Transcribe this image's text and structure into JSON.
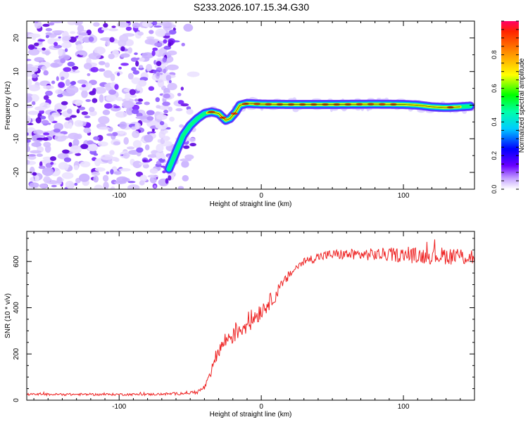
{
  "figure_title": "S233.2026.107.15.34.G30",
  "chart_data": [
    {
      "type": "heatmap",
      "title": "S233.2026.107.15.34.G30",
      "xlabel": "Height of straight line (km)",
      "ylabel": "Frequency (Hz)",
      "xlim": [
        -165,
        150
      ],
      "ylim": [
        -25,
        25
      ],
      "x_ticks": [
        -100,
        0,
        100
      ],
      "y_ticks": [
        20,
        10,
        0,
        -10,
        -20
      ],
      "colorbar": {
        "label": "Normalized spectral amplitude",
        "range": [
          0,
          1
        ],
        "ticks": [
          0.0,
          0.2,
          0.4,
          0.6,
          0.8
        ]
      },
      "ridge": {
        "x": [
          -65,
          -60,
          -55,
          -50,
          -45,
          -40,
          -35,
          -30,
          -25,
          -22,
          -18,
          -15,
          -10,
          0,
          20,
          50,
          80,
          100,
          110,
          120,
          130,
          140,
          147
        ],
        "y": [
          -19,
          -14,
          -9,
          -6,
          -4,
          -2.5,
          -2,
          -2.5,
          -4.5,
          -4,
          -2,
          0,
          0.5,
          0.3,
          0.2,
          0.2,
          0.3,
          0.2,
          0,
          -0.5,
          -0.7,
          -0.5,
          -0.3
        ]
      },
      "noise_region_x": [
        -165,
        -55
      ]
    },
    {
      "type": "line",
      "title": "",
      "xlabel": "Height of straight line (km)",
      "ylabel": "SNR (10 * v/v)",
      "xlim": [
        -165,
        150
      ],
      "ylim": [
        0,
        730
      ],
      "x_ticks": [
        -100,
        0,
        100
      ],
      "y_ticks": [
        0,
        200,
        400,
        600
      ],
      "series": [
        {
          "name": "SNR",
          "color": "#ee2222",
          "x": [
            -165,
            -140,
            -120,
            -100,
            -80,
            -60,
            -45,
            -40,
            -36,
            -34,
            -32,
            -30,
            -25,
            -20,
            -15,
            -10,
            -5,
            0,
            5,
            10,
            15,
            20,
            25,
            30,
            40,
            50,
            70,
            90,
            110,
            130,
            150
          ],
          "y": [
            25,
            25,
            25,
            25,
            25,
            28,
            35,
            55,
            100,
            150,
            185,
            215,
            260,
            285,
            310,
            330,
            360,
            390,
            420,
            455,
            500,
            545,
            575,
            600,
            620,
            630,
            630,
            630,
            625,
            625,
            620
          ],
          "noise_amplitude": [
            5,
            5,
            5,
            5,
            5,
            6,
            8,
            12,
            20,
            25,
            30,
            35,
            40,
            45,
            45,
            45,
            45,
            40,
            35,
            30,
            25,
            20,
            18,
            18,
            20,
            22,
            25,
            30,
            35,
            38,
            40
          ]
        }
      ]
    }
  ]
}
